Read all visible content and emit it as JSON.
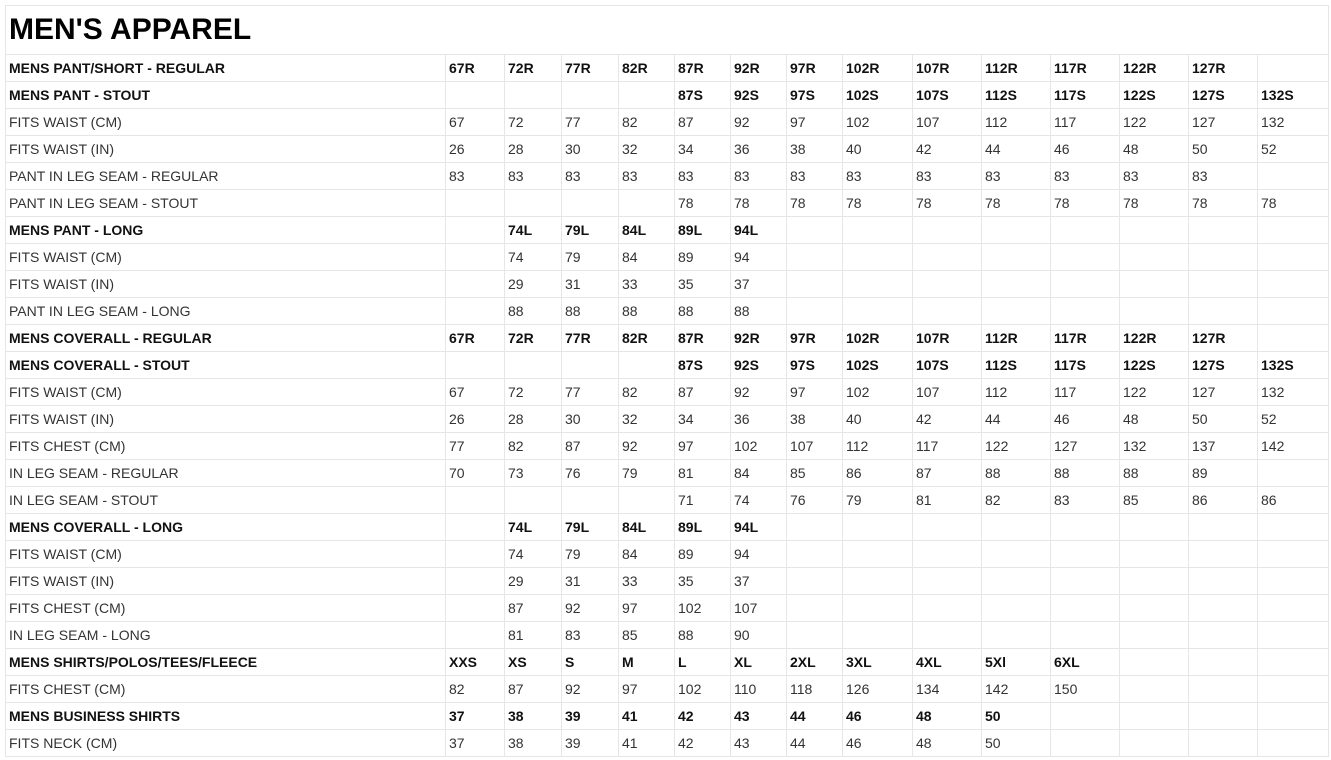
{
  "title": "MEN'S APPAREL",
  "rows": [
    {
      "bold": true,
      "cells": [
        "MENS PANT/SHORT - REGULAR",
        "67R",
        "72R",
        "77R",
        "82R",
        "87R",
        "92R",
        "97R",
        "102R",
        "107R",
        "112R",
        "117R",
        "122R",
        "127R",
        ""
      ]
    },
    {
      "bold": true,
      "cells": [
        "MENS PANT - STOUT",
        "",
        "",
        "",
        "",
        "87S",
        "92S",
        "97S",
        "102S",
        "107S",
        "112S",
        "117S",
        "122S",
        "127S",
        "132S"
      ]
    },
    {
      "bold": false,
      "cells": [
        "FITS WAIST (CM)",
        "67",
        "72",
        "77",
        "82",
        "87",
        "92",
        "97",
        "102",
        "107",
        "112",
        "117",
        "122",
        "127",
        "132"
      ]
    },
    {
      "bold": false,
      "cells": [
        "FITS WAIST (IN)",
        "26",
        "28",
        "30",
        "32",
        "34",
        "36",
        "38",
        "40",
        "42",
        "44",
        "46",
        "48",
        "50",
        "52"
      ]
    },
    {
      "bold": false,
      "cells": [
        "PANT IN LEG SEAM - REGULAR",
        "83",
        "83",
        "83",
        "83",
        "83",
        "83",
        "83",
        "83",
        "83",
        "83",
        "83",
        "83",
        "83",
        ""
      ]
    },
    {
      "bold": false,
      "cells": [
        "PANT IN LEG SEAM - STOUT",
        "",
        "",
        "",
        "",
        "78",
        "78",
        "78",
        "78",
        "78",
        "78",
        "78",
        "78",
        "78",
        "78"
      ]
    },
    {
      "bold": true,
      "cells": [
        "MENS PANT - LONG",
        "",
        "74L",
        "79L",
        "84L",
        "89L",
        "94L",
        "",
        "",
        "",
        "",
        "",
        "",
        "",
        ""
      ]
    },
    {
      "bold": false,
      "cells": [
        "FITS WAIST (CM)",
        "",
        "74",
        "79",
        "84",
        "89",
        "94",
        "",
        "",
        "",
        "",
        "",
        "",
        "",
        ""
      ]
    },
    {
      "bold": false,
      "cells": [
        "FITS WAIST (IN)",
        "",
        "29",
        "31",
        "33",
        "35",
        "37",
        "",
        "",
        "",
        "",
        "",
        "",
        "",
        ""
      ]
    },
    {
      "bold": false,
      "cells": [
        "PANT IN LEG SEAM - LONG",
        "",
        "88",
        "88",
        "88",
        "88",
        "88",
        "",
        "",
        "",
        "",
        "",
        "",
        "",
        ""
      ]
    },
    {
      "bold": true,
      "cells": [
        "MENS COVERALL - REGULAR",
        "67R",
        "72R",
        "77R",
        "82R",
        "87R",
        "92R",
        "97R",
        "102R",
        "107R",
        "112R",
        "117R",
        "122R",
        "127R",
        ""
      ]
    },
    {
      "bold": true,
      "cells": [
        "MENS COVERALL - STOUT",
        "",
        "",
        "",
        "",
        "87S",
        "92S",
        "97S",
        "102S",
        "107S",
        "112S",
        "117S",
        "122S",
        "127S",
        "132S"
      ]
    },
    {
      "bold": false,
      "cells": [
        "FITS WAIST (CM)",
        "67",
        "72",
        "77",
        "82",
        "87",
        "92",
        "97",
        "102",
        "107",
        "112",
        "117",
        "122",
        "127",
        "132"
      ]
    },
    {
      "bold": false,
      "cells": [
        "FITS WAIST (IN)",
        "26",
        "28",
        "30",
        "32",
        "34",
        "36",
        "38",
        "40",
        "42",
        "44",
        "46",
        "48",
        "50",
        "52"
      ]
    },
    {
      "bold": false,
      "cells": [
        "FITS CHEST (CM)",
        "77",
        "82",
        "87",
        "92",
        "97",
        "102",
        "107",
        "112",
        "117",
        "122",
        "127",
        "132",
        "137",
        "142"
      ]
    },
    {
      "bold": false,
      "cells": [
        "IN LEG SEAM - REGULAR",
        "70",
        "73",
        "76",
        "79",
        "81",
        "84",
        "85",
        "86",
        "87",
        "88",
        "88",
        "88",
        "89",
        ""
      ]
    },
    {
      "bold": false,
      "cells": [
        "IN LEG SEAM - STOUT",
        "",
        "",
        "",
        "",
        "71",
        "74",
        "76",
        "79",
        "81",
        "82",
        "83",
        "85",
        "86",
        "86"
      ]
    },
    {
      "bold": true,
      "cells": [
        "MENS COVERALL - LONG",
        "",
        "74L",
        "79L",
        "84L",
        "89L",
        "94L",
        "",
        "",
        "",
        "",
        "",
        "",
        "",
        ""
      ]
    },
    {
      "bold": false,
      "cells": [
        "FITS WAIST (CM)",
        "",
        "74",
        "79",
        "84",
        "89",
        "94",
        "",
        "",
        "",
        "",
        "",
        "",
        "",
        ""
      ]
    },
    {
      "bold": false,
      "cells": [
        "FITS WAIST (IN)",
        "",
        "29",
        "31",
        "33",
        "35",
        "37",
        "",
        "",
        "",
        "",
        "",
        "",
        "",
        ""
      ]
    },
    {
      "bold": false,
      "cells": [
        "FITS CHEST (CM)",
        "",
        "87",
        "92",
        "97",
        "102",
        "107",
        "",
        "",
        "",
        "",
        "",
        "",
        "",
        ""
      ]
    },
    {
      "bold": false,
      "cells": [
        "IN LEG SEAM - LONG",
        "",
        "81",
        "83",
        "85",
        "88",
        "90",
        "",
        "",
        "",
        "",
        "",
        "",
        "",
        ""
      ]
    },
    {
      "bold": true,
      "cells": [
        "MENS SHIRTS/POLOS/TEES/FLEECE",
        "XXS",
        "XS",
        "S",
        "M",
        "L",
        "XL",
        "2XL",
        "3XL",
        "4XL",
        "5Xl",
        "6XL",
        "",
        "",
        ""
      ]
    },
    {
      "bold": false,
      "cells": [
        "FITS CHEST (CM)",
        "82",
        "87",
        "92",
        "97",
        "102",
        "110",
        "118",
        "126",
        "134",
        "142",
        "150",
        "",
        "",
        ""
      ]
    },
    {
      "bold": true,
      "cells": [
        "MENS BUSINESS SHIRTS",
        "37",
        "38",
        "39",
        "41",
        "42",
        "43",
        "44",
        "46",
        "48",
        "50",
        "",
        "",
        "",
        ""
      ]
    },
    {
      "bold": false,
      "cells": [
        "FITS NECK (CM)",
        "37",
        "38",
        "39",
        "41",
        "42",
        "43",
        "44",
        "46",
        "48",
        "50",
        "",
        "",
        "",
        ""
      ]
    }
  ]
}
